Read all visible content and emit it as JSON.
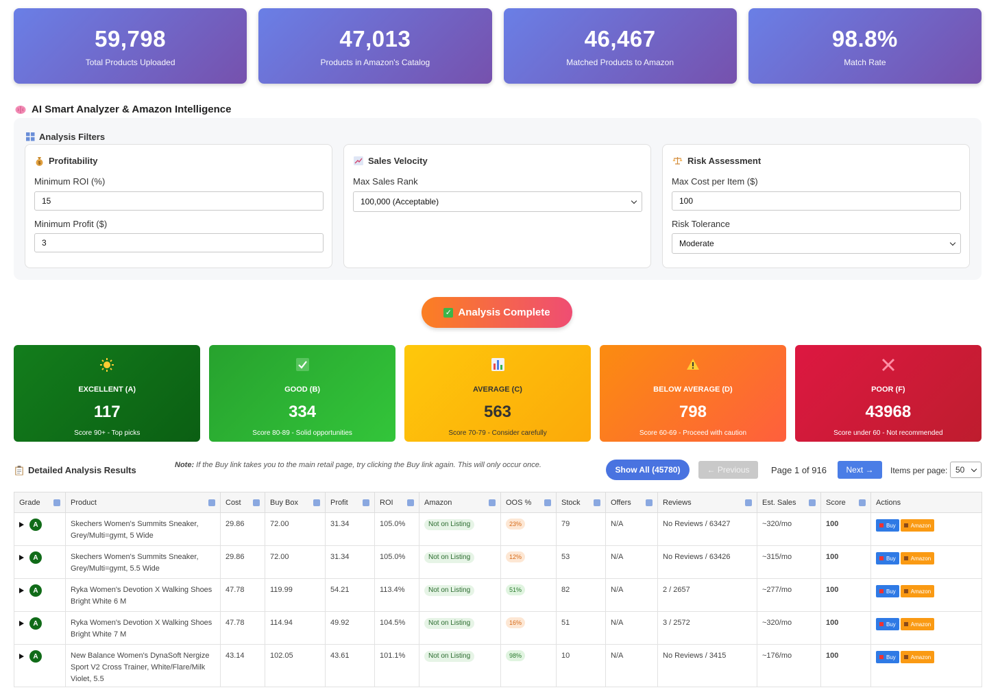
{
  "stats": [
    {
      "value": "59,798",
      "label": "Total Products Uploaded"
    },
    {
      "value": "47,013",
      "label": "Products in Amazon's Catalog"
    },
    {
      "value": "46,467",
      "label": "Matched Products to Amazon"
    },
    {
      "value": "98.8%",
      "label": "Match Rate"
    }
  ],
  "analyzer": {
    "title": "AI Smart Analyzer & Amazon Intelligence",
    "title_icon": "brain-icon",
    "filters_title": "Analysis Filters",
    "profitability": {
      "title": "Profitability",
      "min_roi_label": "Minimum ROI (%)",
      "min_roi_value": "15",
      "min_profit_label": "Minimum Profit ($)",
      "min_profit_value": "3"
    },
    "sales_velocity": {
      "title": "Sales Velocity",
      "max_rank_label": "Max Sales Rank",
      "max_rank_value": "100,000 (Acceptable)"
    },
    "risk": {
      "title": "Risk Assessment",
      "max_cost_label": "Max Cost per Item ($)",
      "max_cost_value": "100",
      "tolerance_label": "Risk Tolerance",
      "tolerance_value": "Moderate"
    },
    "status_button": "Analysis Complete"
  },
  "grades": [
    {
      "icon": "☀",
      "name": "EXCELLENT (A)",
      "count": "117",
      "desc": "Score 90+ - Top picks"
    },
    {
      "icon": "✔",
      "name": "GOOD (B)",
      "count": "334",
      "desc": "Score 80-89 - Solid opportunities"
    },
    {
      "icon": "▮",
      "name": "AVERAGE (C)",
      "count": "563",
      "desc": "Score 70-79 - Consider carefully"
    },
    {
      "icon": "⚠",
      "name": "BELOW AVERAGE (D)",
      "count": "798",
      "desc": "Score 60-69 - Proceed with caution"
    },
    {
      "icon": "✕",
      "name": "POOR (F)",
      "count": "43968",
      "desc": "Score under 60 - Not recommended"
    }
  ],
  "results": {
    "title": "Detailed Analysis Results",
    "note_label": "Note:",
    "note_text": "If the Buy link takes you to the main retail page, try clicking the Buy link again. This will only occur once.",
    "show_all": "Show All (45780)",
    "previous": "← Previous",
    "page_indicator": "Page 1 of 916",
    "next": "Next →",
    "items_per_page_label": "Items per page:",
    "items_per_page_value": "50",
    "columns": [
      "Grade",
      "Product",
      "Cost",
      "Buy Box",
      "Profit",
      "ROI",
      "Amazon",
      "OOS %",
      "Stock",
      "Offers",
      "Reviews",
      "Est. Sales",
      "Score",
      "Actions"
    ],
    "buy_label": "Buy",
    "amazon_label": "Amazon",
    "rows": [
      {
        "grade": "A",
        "product": "Skechers Women's Summits Sneaker, Grey/Multi=gymt, 5 Wide",
        "cost": "29.86",
        "buybox": "72.00",
        "profit": "31.34",
        "roi": "105.0%",
        "amazon": "Not on Listing",
        "oos": "23%",
        "oos_color": "orange",
        "stock": "79",
        "offers": "N/A",
        "reviews": "No Reviews / 63427",
        "sales": "~320/mo",
        "score": "100"
      },
      {
        "grade": "A",
        "product": "Skechers Women's Summits Sneaker, Grey/Multi=gymt, 5.5 Wide",
        "cost": "29.86",
        "buybox": "72.00",
        "profit": "31.34",
        "roi": "105.0%",
        "amazon": "Not on Listing",
        "oos": "12%",
        "oos_color": "orange",
        "stock": "53",
        "offers": "N/A",
        "reviews": "No Reviews / 63426",
        "sales": "~315/mo",
        "score": "100"
      },
      {
        "grade": "A",
        "product": "Ryka Women's Devotion X Walking Shoes Bright White 6 M",
        "cost": "47.78",
        "buybox": "119.99",
        "profit": "54.21",
        "roi": "113.4%",
        "amazon": "Not on Listing",
        "oos": "51%",
        "oos_color": "green",
        "stock": "82",
        "offers": "N/A",
        "reviews": "2 / 2657",
        "sales": "~277/mo",
        "score": "100"
      },
      {
        "grade": "A",
        "product": "Ryka Women's Devotion X Walking Shoes Bright White 7 M",
        "cost": "47.78",
        "buybox": "114.94",
        "profit": "49.92",
        "roi": "104.5%",
        "amazon": "Not on Listing",
        "oos": "16%",
        "oos_color": "orange",
        "stock": "51",
        "offers": "N/A",
        "reviews": "3 / 2572",
        "sales": "~320/mo",
        "score": "100"
      },
      {
        "grade": "A",
        "product": "New Balance Women's DynaSoft Nergize Sport V2 Cross Trainer, White/Flare/Milk Violet, 5.5",
        "cost": "43.14",
        "buybox": "102.05",
        "profit": "43.61",
        "roi": "101.1%",
        "amazon": "Not on Listing",
        "oos": "98%",
        "oos_color": "green",
        "stock": "10",
        "offers": "N/A",
        "reviews": "No Reviews / 3415",
        "sales": "~176/mo",
        "score": "100"
      }
    ]
  }
}
